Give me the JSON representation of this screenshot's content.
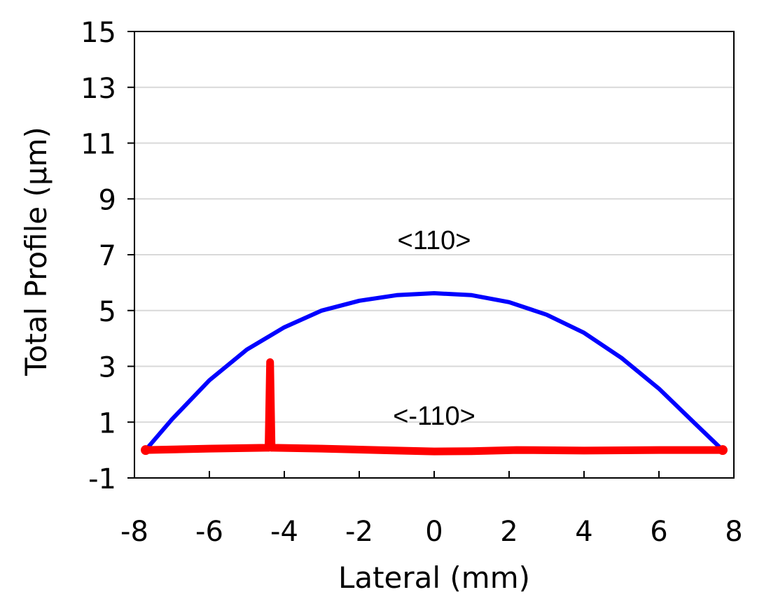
{
  "chart_data": {
    "type": "line",
    "xlabel": "Lateral (mm)",
    "ylabel": "Total Profile (μm)",
    "xlim": [
      -8,
      8
    ],
    "ylim": [
      -1,
      15
    ],
    "xticks": [
      -8,
      -6,
      -4,
      -2,
      0,
      2,
      4,
      6,
      8
    ],
    "yticks": [
      -1,
      1,
      3,
      5,
      7,
      9,
      11,
      13,
      15
    ],
    "grid": "horizontal",
    "annotations": [
      {
        "text": "<110>",
        "x": 0,
        "y": 7.2
      },
      {
        "text": "<-110>",
        "x": 0,
        "y": 0.9
      }
    ],
    "series": [
      {
        "name": "<110>",
        "color": "#0000ff",
        "x": [
          -7.7,
          -7.0,
          -6.0,
          -5.0,
          -4.0,
          -3.0,
          -2.0,
          -1.0,
          0.0,
          1.0,
          2.0,
          3.0,
          4.0,
          5.0,
          6.0,
          7.0,
          7.7
        ],
        "y": [
          0.0,
          1.1,
          2.5,
          3.6,
          4.4,
          5.0,
          5.35,
          5.55,
          5.62,
          5.55,
          5.3,
          4.85,
          4.2,
          3.3,
          2.2,
          0.9,
          0.0
        ]
      },
      {
        "name": "<-110>",
        "color": "#ff0000",
        "x": [
          -7.7,
          -6.0,
          -4.5,
          -4.42,
          -4.38,
          -4.34,
          -4.3,
          -3.0,
          -1.0,
          0.0,
          1.0,
          2.2,
          4.0,
          6.0,
          7.7
        ],
        "y": [
          0.0,
          0.05,
          0.08,
          0.08,
          3.15,
          0.08,
          0.08,
          0.05,
          -0.02,
          -0.05,
          -0.04,
          0.0,
          -0.02,
          0.0,
          0.0
        ]
      }
    ]
  }
}
